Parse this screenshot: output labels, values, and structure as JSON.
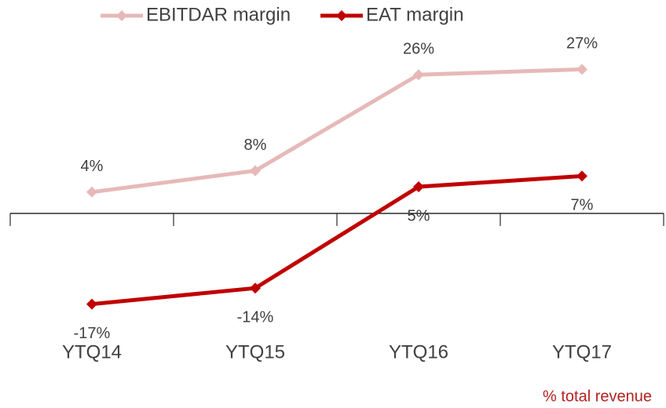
{
  "chart_data": {
    "type": "line",
    "categories": [
      "YTQ14",
      "YTQ15",
      "YTQ16",
      "YTQ17"
    ],
    "series": [
      {
        "name": "EBITDAR margin",
        "color": "#e6b9b8",
        "values": [
          4,
          8,
          26,
          27
        ],
        "value_labels": [
          "4%",
          "8%",
          "26%",
          "27%"
        ]
      },
      {
        "name": "EAT margin",
        "color": "#c00000",
        "values": [
          -17,
          -14,
          5,
          7
        ],
        "value_labels": [
          "-17%",
          "-14%",
          "5%",
          "7%"
        ]
      }
    ],
    "ylim": [
      -20,
      30
    ],
    "note": "% total revenue",
    "legend": "top"
  }
}
